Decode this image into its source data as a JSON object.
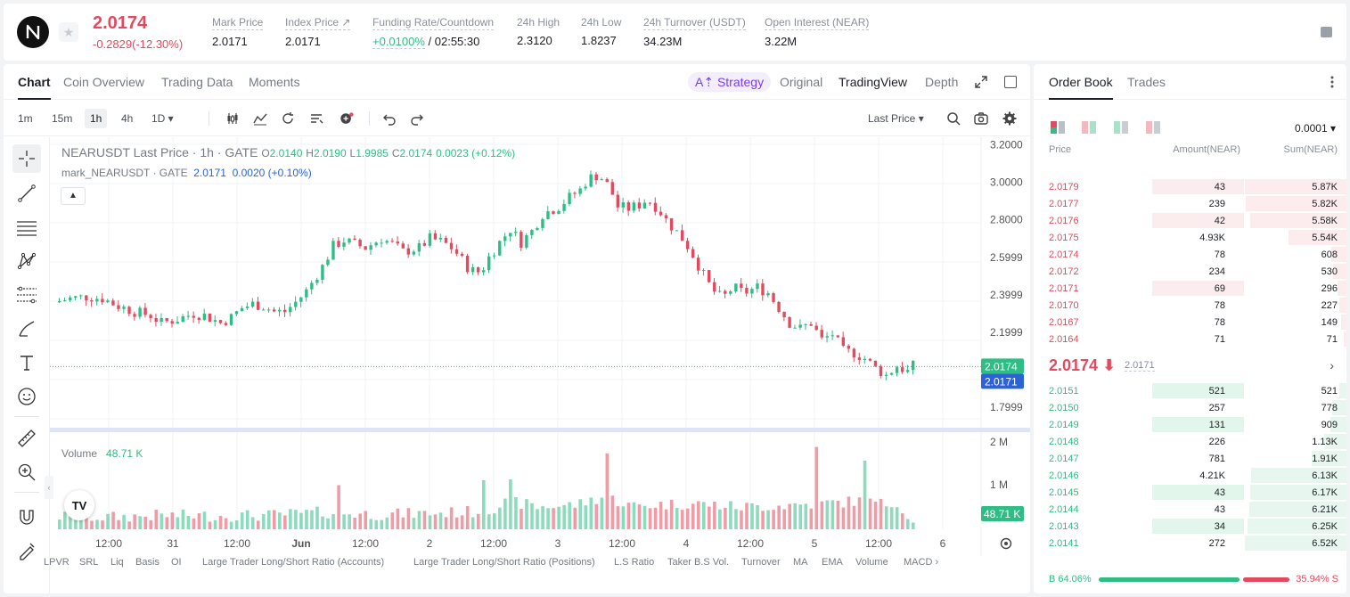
{
  "ticker": {
    "price": "2.0174",
    "change": "-0.2829(-12.30%)",
    "stats": [
      {
        "label": "Mark Price",
        "value": "2.0171"
      },
      {
        "label": "Index Price ↗",
        "value": "2.0171"
      },
      {
        "label": "Funding Rate/Countdown",
        "value_green": "+0.0100%",
        "value": " / 02:55:30"
      },
      {
        "label": "24h High",
        "value": "2.3120"
      },
      {
        "label": "24h Low",
        "value": "1.8237"
      },
      {
        "label": "24h Turnover (USDT)",
        "value": "34.23M"
      },
      {
        "label": "Open Interest (NEAR)",
        "value": "3.22M"
      }
    ]
  },
  "chart_tabs": [
    "Chart",
    "Coin Overview",
    "Trading Data",
    "Moments"
  ],
  "view_tabs": {
    "strategy": "A⇡ Strategy",
    "original": "Original",
    "tradingview": "TradingView",
    "depth": "Depth"
  },
  "toolbar": {
    "intervals": [
      "1m",
      "15m",
      "1h",
      "4h",
      "1D ▾"
    ],
    "active_interval": "1h",
    "last_price_select": "Last Price ▾"
  },
  "legend": {
    "title": "NEARUSDT Last Price · 1h · GATE",
    "o": "2.0140",
    "h": "2.0190",
    "l": "1.9985",
    "c": "2.0174",
    "delta": "0.0023 (+0.12%)",
    "mark_name": "mark_NEARUSDT · GATE",
    "mark_value": "2.0171",
    "mark_delta": "0.0020 (+0.10%)",
    "volume_label": "Volume",
    "volume_value": "48.71 K"
  },
  "colors": {
    "up": "#2ebd85",
    "down": "#e34a5f",
    "mark": "#2c62d8"
  },
  "chart_data": {
    "type": "candlestick",
    "y_axis_ticks": [
      "3.2000",
      "3.0000",
      "2.8000",
      "2.5999",
      "2.3999",
      "2.1999",
      "1.7999"
    ],
    "y_range": [
      1.72,
      3.24
    ],
    "last_price_tag": "2.0174",
    "mark_price_tag": "2.0171",
    "volume_axis_ticks": [
      "2 M",
      "1 M"
    ],
    "volume_tag": "48.71 K",
    "x_axis_ticks": [
      "12:00",
      "31",
      "12:00",
      "Jun",
      "12:00",
      "2",
      "12:00",
      "3",
      "12:00",
      "4",
      "12:00",
      "5",
      "12:00",
      "6"
    ],
    "close_path": [
      [
        0,
        2.36
      ],
      [
        6,
        2.38
      ],
      [
        12,
        2.39
      ],
      [
        18,
        2.38
      ],
      [
        24,
        2.34
      ],
      [
        30,
        2.31
      ],
      [
        36,
        2.29
      ],
      [
        40,
        2.25
      ],
      [
        46,
        2.27
      ],
      [
        52,
        2.3
      ],
      [
        56,
        2.29
      ],
      [
        62,
        2.25
      ],
      [
        66,
        2.28
      ],
      [
        70,
        2.33
      ],
      [
        74,
        2.35
      ],
      [
        78,
        2.34
      ],
      [
        82,
        2.31
      ],
      [
        86,
        2.31
      ],
      [
        90,
        2.36
      ],
      [
        94,
        2.42
      ],
      [
        100,
        2.55
      ],
      [
        104,
        2.66
      ],
      [
        108,
        2.69
      ],
      [
        112,
        2.67
      ],
      [
        116,
        2.65
      ],
      [
        122,
        2.7
      ],
      [
        126,
        2.67
      ],
      [
        130,
        2.63
      ],
      [
        136,
        2.65
      ],
      [
        140,
        2.7
      ],
      [
        145,
        2.68
      ],
      [
        149,
        2.64
      ],
      [
        155,
        2.53
      ],
      [
        159,
        2.52
      ],
      [
        162,
        2.6
      ],
      [
        166,
        2.68
      ],
      [
        170,
        2.75
      ],
      [
        174,
        2.68
      ],
      [
        178,
        2.74
      ],
      [
        182,
        2.83
      ],
      [
        188,
        2.87
      ],
      [
        192,
        2.92
      ],
      [
        196,
        2.96
      ],
      [
        199,
        3.02
      ],
      [
        203,
        3.04
      ],
      [
        207,
        2.97
      ],
      [
        210,
        2.87
      ],
      [
        214,
        2.86
      ],
      [
        218,
        2.88
      ],
      [
        221,
        2.91
      ],
      [
        225,
        2.86
      ],
      [
        229,
        2.78
      ],
      [
        233,
        2.72
      ],
      [
        237,
        2.64
      ],
      [
        241,
        2.53
      ],
      [
        245,
        2.43
      ],
      [
        249,
        2.38
      ],
      [
        253,
        2.44
      ],
      [
        257,
        2.41
      ],
      [
        262,
        2.44
      ],
      [
        266,
        2.41
      ],
      [
        270,
        2.33
      ],
      [
        274,
        2.25
      ],
      [
        278,
        2.22
      ],
      [
        282,
        2.25
      ],
      [
        286,
        2.16
      ],
      [
        290,
        2.19
      ],
      [
        294,
        2.1
      ],
      [
        298,
        2.09
      ],
      [
        302,
        2.06
      ],
      [
        306,
        2.01
      ],
      [
        310,
        1.97
      ],
      [
        314,
        2.02
      ],
      [
        318,
        1.99
      ],
      [
        320,
        2.02
      ]
    ],
    "volume_path": [
      [
        0,
        0.14
      ],
      [
        20,
        0.12
      ],
      [
        40,
        0.16
      ],
      [
        60,
        0.15
      ],
      [
        80,
        0.16
      ],
      [
        100,
        0.22
      ],
      [
        120,
        0.18
      ],
      [
        140,
        0.2
      ],
      [
        160,
        0.24
      ],
      [
        170,
        0.45
      ],
      [
        180,
        0.33
      ],
      [
        195,
        0.38
      ],
      [
        205,
        0.55
      ],
      [
        215,
        0.35
      ],
      [
        225,
        0.38
      ],
      [
        240,
        0.4
      ],
      [
        255,
        0.33
      ],
      [
        270,
        0.36
      ],
      [
        285,
        0.4
      ],
      [
        300,
        0.45
      ],
      [
        310,
        0.38
      ],
      [
        320,
        0.12
      ]
    ],
    "volume_spikes": [
      [
        206,
        1.55
      ],
      [
        284,
        1.68
      ],
      [
        302,
        1.4
      ],
      [
        160,
        1.0
      ],
      [
        170,
        1.02
      ],
      [
        106,
        0.9
      ],
      [
        313,
        0.45
      ]
    ]
  },
  "bottom_indicators": [
    "LPVR",
    "SRL",
    "Liq",
    "Basis",
    "OI",
    "Large Trader Long/Short Ratio (Accounts)",
    "Large Trader Long/Short Ratio (Positions)",
    "L.S Ratio",
    "Taker B.S Vol.",
    "Turnover",
    "MA",
    "EMA",
    "Volume",
    "MACD ›"
  ],
  "orderbook": {
    "tabs": [
      "Order Book",
      "Trades"
    ],
    "precision": "0.0001 ▾",
    "headers": {
      "price": "Price",
      "amount": "Amount(NEAR)",
      "sum": "Sum(NEAR)"
    },
    "asks": [
      {
        "price": "2.0179",
        "amount": "43",
        "sum": "5.87K",
        "a": 0.9,
        "s": 1.0
      },
      {
        "price": "2.0177",
        "amount": "239",
        "sum": "5.82K",
        "a": 0.0,
        "s": 0.99
      },
      {
        "price": "2.0176",
        "amount": "42",
        "sum": "5.58K",
        "a": 0.9,
        "s": 0.95
      },
      {
        "price": "2.0175",
        "amount": "4.93K",
        "sum": "5.54K",
        "a": 0.0,
        "s": 0.57
      },
      {
        "price": "2.0174",
        "amount": "78",
        "sum": "608",
        "a": 0.0,
        "s": 0.15
      },
      {
        "price": "2.0172",
        "amount": "234",
        "sum": "530",
        "a": 0.0,
        "s": 0.13
      },
      {
        "price": "2.0171",
        "amount": "69",
        "sum": "296",
        "a": 0.9,
        "s": 0.09
      },
      {
        "price": "2.0170",
        "amount": "78",
        "sum": "227",
        "a": 0.0,
        "s": 0.07
      },
      {
        "price": "2.0167",
        "amount": "78",
        "sum": "149",
        "a": 0.0,
        "s": 0.05
      },
      {
        "price": "2.0164",
        "amount": "71",
        "sum": "71",
        "a": 0.0,
        "s": 0.03
      }
    ],
    "mid_price": "2.0174 ⬇",
    "mid_mark": "2.0171",
    "bids": [
      {
        "price": "2.0151",
        "amount": "521",
        "sum": "521",
        "a": 0.9,
        "s": 0.07
      },
      {
        "price": "2.0150",
        "amount": "257",
        "sum": "778",
        "a": 0.0,
        "s": 0.14
      },
      {
        "price": "2.0149",
        "amount": "131",
        "sum": "909",
        "a": 0.9,
        "s": 0.16
      },
      {
        "price": "2.0148",
        "amount": "226",
        "sum": "1.13K",
        "a": 0.0,
        "s": 0.22
      },
      {
        "price": "2.0147",
        "amount": "781",
        "sum": "1.91K",
        "a": 0.0,
        "s": 0.34
      },
      {
        "price": "2.0146",
        "amount": "4.21K",
        "sum": "6.13K",
        "a": 0.0,
        "s": 0.94
      },
      {
        "price": "2.0145",
        "amount": "43",
        "sum": "6.17K",
        "a": 0.9,
        "s": 0.95
      },
      {
        "price": "2.0144",
        "amount": "43",
        "sum": "6.21K",
        "a": 0.0,
        "s": 0.96
      },
      {
        "price": "2.0143",
        "amount": "34",
        "sum": "6.25K",
        "a": 0.9,
        "s": 0.97
      },
      {
        "price": "2.0141",
        "amount": "272",
        "sum": "6.52K",
        "a": 0.0,
        "s": 1.0
      }
    ],
    "buy_ratio": "B 64.06%",
    "sell_ratio": "35.94% S"
  }
}
